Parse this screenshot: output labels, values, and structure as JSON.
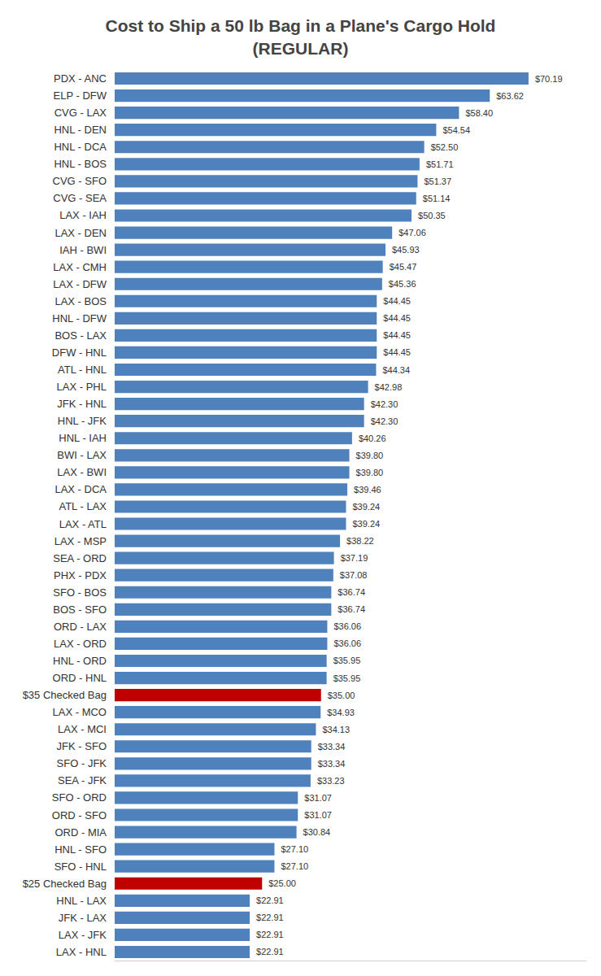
{
  "chart_data": {
    "type": "bar",
    "title": "Cost to Ship a 50 lb Bag in a Plane's Cargo Hold\n(REGULAR)",
    "orientation": "horizontal",
    "categories": [
      "PDX - ANC",
      "ELP - DFW",
      "CVG - LAX",
      "HNL - DEN",
      "HNL - DCA",
      "HNL - BOS",
      "CVG - SFO",
      "CVG - SEA",
      "LAX - IAH",
      "LAX - DEN",
      "IAH - BWI",
      "LAX - CMH",
      "LAX - DFW",
      "LAX - BOS",
      "HNL - DFW",
      "BOS - LAX",
      "DFW - HNL",
      "ATL - HNL",
      "LAX - PHL",
      "JFK - HNL",
      "HNL - JFK",
      "HNL - IAH",
      "BWI - LAX",
      "LAX - BWI",
      "LAX - DCA",
      "ATL - LAX",
      "LAX - ATL",
      "LAX - MSP",
      "SEA - ORD",
      "PHX - PDX",
      "SFO - BOS",
      "BOS - SFO",
      "ORD - LAX",
      "LAX - ORD",
      "HNL - ORD",
      "ORD - HNL",
      "$35 Checked Bag",
      "LAX - MCO",
      "LAX - MCI",
      "JFK - SFO",
      "SFO - JFK",
      "SEA - JFK",
      "SFO - ORD",
      "ORD - SFO",
      "ORD - MIA",
      "HNL - SFO",
      "SFO - HNL",
      "$25 Checked Bag",
      "HNL - LAX",
      "JFK - LAX",
      "LAX - JFK",
      "LAX - HNL"
    ],
    "values": [
      70.19,
      63.62,
      58.4,
      54.54,
      52.5,
      51.71,
      51.37,
      51.14,
      50.35,
      47.06,
      45.93,
      45.47,
      45.36,
      44.45,
      44.45,
      44.45,
      44.45,
      44.34,
      42.98,
      42.3,
      42.3,
      40.26,
      39.8,
      39.8,
      39.46,
      39.24,
      39.24,
      38.22,
      37.19,
      37.08,
      36.74,
      36.74,
      36.06,
      36.06,
      35.95,
      35.95,
      35.0,
      34.93,
      34.13,
      33.34,
      33.34,
      33.23,
      31.07,
      31.07,
      30.84,
      27.1,
      27.1,
      25.0,
      22.91,
      22.91,
      22.91,
      22.91
    ],
    "value_labels": [
      "$70.19",
      "$63.62",
      "$58.40",
      "$54.54",
      "$52.50",
      "$51.71",
      "$51.37",
      "$51.14",
      "$50.35",
      "$47.06",
      "$45.93",
      "$45.47",
      "$45.36",
      "$44.45",
      "$44.45",
      "$44.45",
      "$44.45",
      "$44.34",
      "$42.98",
      "$42.30",
      "$42.30",
      "$40.26",
      "$39.80",
      "$39.80",
      "$39.46",
      "$39.24",
      "$39.24",
      "$38.22",
      "$37.19",
      "$37.08",
      "$36.74",
      "$36.74",
      "$36.06",
      "$36.06",
      "$35.95",
      "$35.95",
      "$35.00",
      "$34.93",
      "$34.13",
      "$33.34",
      "$33.34",
      "$33.23",
      "$31.07",
      "$31.07",
      "$30.84",
      "$27.10",
      "$27.10",
      "$25.00",
      "$22.91",
      "$22.91",
      "$22.91",
      "$22.91"
    ],
    "colors": [
      "#4f81bd",
      "#4f81bd",
      "#4f81bd",
      "#4f81bd",
      "#4f81bd",
      "#4f81bd",
      "#4f81bd",
      "#4f81bd",
      "#4f81bd",
      "#4f81bd",
      "#4f81bd",
      "#4f81bd",
      "#4f81bd",
      "#4f81bd",
      "#4f81bd",
      "#4f81bd",
      "#4f81bd",
      "#4f81bd",
      "#4f81bd",
      "#4f81bd",
      "#4f81bd",
      "#4f81bd",
      "#4f81bd",
      "#4f81bd",
      "#4f81bd",
      "#4f81bd",
      "#4f81bd",
      "#4f81bd",
      "#4f81bd",
      "#4f81bd",
      "#4f81bd",
      "#4f81bd",
      "#4f81bd",
      "#4f81bd",
      "#4f81bd",
      "#4f81bd",
      "#c00000",
      "#4f81bd",
      "#4f81bd",
      "#4f81bd",
      "#4f81bd",
      "#4f81bd",
      "#4f81bd",
      "#4f81bd",
      "#4f81bd",
      "#4f81bd",
      "#4f81bd",
      "#c00000",
      "#4f81bd",
      "#4f81bd",
      "#4f81bd",
      "#4f81bd"
    ],
    "xlim": [
      0,
      80
    ],
    "grid": false,
    "data_labels": true,
    "tick_labels": "y"
  }
}
